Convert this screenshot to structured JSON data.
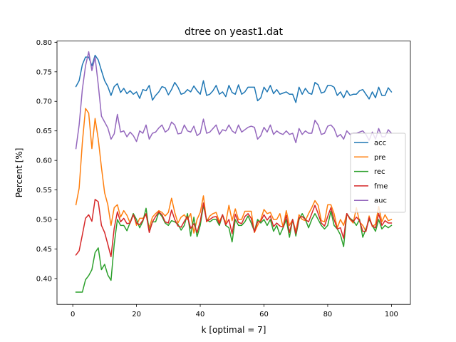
{
  "chart_data": {
    "type": "line",
    "title": "dtree on yeast1.dat",
    "xlabel": "k [optimal = 7]",
    "ylabel": "Percent [%]",
    "xlim": [
      -4.95,
      105.95
    ],
    "ylim": [
      0.3563,
      0.8021
    ],
    "xticks": [
      0,
      20,
      40,
      60,
      80,
      100
    ],
    "xtick_labels": [
      "0",
      "20",
      "40",
      "60",
      "80",
      "100"
    ],
    "yticks": [
      0.4,
      0.45,
      0.5,
      0.55,
      0.6,
      0.65,
      0.7,
      0.75,
      0.8
    ],
    "ytick_labels": [
      "0.40",
      "0.45",
      "0.50",
      "0.55",
      "0.60",
      "0.65",
      "0.70",
      "0.75",
      "0.80"
    ],
    "grid": false,
    "legend_position": "center-right",
    "x": [
      1,
      2,
      3,
      4,
      5,
      6,
      7,
      8,
      9,
      10,
      11,
      12,
      13,
      14,
      15,
      16,
      17,
      18,
      19,
      20,
      21,
      22,
      23,
      24,
      25,
      26,
      27,
      28,
      29,
      30,
      31,
      32,
      33,
      34,
      35,
      36,
      37,
      38,
      39,
      40,
      41,
      42,
      43,
      44,
      45,
      46,
      47,
      48,
      49,
      50,
      51,
      52,
      53,
      54,
      55,
      56,
      57,
      58,
      59,
      60,
      61,
      62,
      63,
      64,
      65,
      66,
      67,
      68,
      69,
      70,
      71,
      72,
      73,
      74,
      75,
      76,
      77,
      78,
      79,
      80,
      81,
      82,
      83,
      84,
      85,
      86,
      87,
      88,
      89,
      90,
      91,
      92,
      93,
      94,
      95,
      96,
      97,
      98,
      99,
      100
    ],
    "series": [
      {
        "name": "acc",
        "color": "#1f77b4",
        "values": [
          0.725,
          0.735,
          0.762,
          0.775,
          0.775,
          0.76,
          0.778,
          0.77,
          0.752,
          0.735,
          0.725,
          0.71,
          0.725,
          0.73,
          0.715,
          0.722,
          0.713,
          0.718,
          0.712,
          0.716,
          0.705,
          0.72,
          0.718,
          0.727,
          0.702,
          0.71,
          0.716,
          0.725,
          0.723,
          0.711,
          0.72,
          0.732,
          0.724,
          0.712,
          0.714,
          0.72,
          0.716,
          0.726,
          0.718,
          0.712,
          0.735,
          0.71,
          0.712,
          0.718,
          0.727,
          0.712,
          0.716,
          0.708,
          0.727,
          0.715,
          0.712,
          0.728,
          0.712,
          0.716,
          0.724,
          0.724,
          0.724,
          0.701,
          0.706,
          0.724,
          0.716,
          0.727,
          0.713,
          0.72,
          0.712,
          0.714,
          0.716,
          0.712,
          0.712,
          0.698,
          0.724,
          0.712,
          0.722,
          0.714,
          0.712,
          0.732,
          0.728,
          0.714,
          0.716,
          0.727,
          0.727,
          0.724,
          0.71,
          0.716,
          0.706,
          0.718,
          0.71,
          0.712,
          0.712,
          0.718,
          0.72,
          0.712,
          0.704,
          0.716,
          0.706,
          0.724,
          0.71,
          0.71,
          0.723,
          0.716
        ]
      },
      {
        "name": "pre",
        "color": "#ff7f0e",
        "values": [
          0.525,
          0.553,
          0.63,
          0.688,
          0.68,
          0.62,
          0.671,
          0.636,
          0.588,
          0.545,
          0.525,
          0.49,
          0.52,
          0.525,
          0.504,
          0.515,
          0.507,
          0.494,
          0.51,
          0.49,
          0.502,
          0.502,
          0.508,
          0.486,
          0.504,
          0.51,
          0.515,
          0.512,
          0.506,
          0.512,
          0.536,
          0.512,
          0.494,
          0.504,
          0.508,
          0.5,
          0.51,
          0.477,
          0.5,
          0.512,
          0.54,
          0.496,
          0.506,
          0.51,
          0.512,
          0.496,
          0.508,
          0.494,
          0.524,
          0.498,
          0.518,
          0.5,
          0.5,
          0.514,
          0.514,
          0.514,
          0.478,
          0.49,
          0.5,
          0.517,
          0.51,
          0.512,
          0.5,
          0.5,
          0.51,
          0.487,
          0.515,
          0.49,
          0.5,
          0.48,
          0.508,
          0.5,
          0.498,
          0.51,
          0.52,
          0.532,
          0.524,
          0.498,
          0.496,
          0.525,
          0.525,
          0.51,
          0.486,
          0.5,
          0.49,
          0.51,
          0.5,
          0.494,
          0.52,
          0.496,
          0.49,
          0.48,
          0.506,
          0.488,
          0.492,
          0.522,
          0.496,
          0.508,
          0.498,
          0.5
        ]
      },
      {
        "name": "rec",
        "color": "#2ca02c",
        "values": [
          0.377,
          0.377,
          0.377,
          0.398,
          0.405,
          0.415,
          0.444,
          0.452,
          0.415,
          0.424,
          0.406,
          0.397,
          0.458,
          0.5,
          0.49,
          0.49,
          0.481,
          0.495,
          0.51,
          0.5,
          0.486,
          0.497,
          0.519,
          0.48,
          0.496,
          0.496,
          0.512,
          0.505,
          0.494,
          0.49,
          0.498,
          0.496,
          0.492,
          0.482,
          0.49,
          0.51,
          0.472,
          0.504,
          0.471,
          0.49,
          0.524,
          0.5,
          0.496,
          0.5,
          0.5,
          0.49,
          0.508,
          0.49,
          0.486,
          0.462,
          0.5,
          0.49,
          0.49,
          0.496,
          0.506,
          0.494,
          0.48,
          0.5,
          0.494,
          0.5,
          0.49,
          0.5,
          0.48,
          0.49,
          0.474,
          0.486,
          0.5,
          0.47,
          0.5,
          0.472,
          0.5,
          0.51,
          0.5,
          0.486,
          0.5,
          0.51,
          0.5,
          0.49,
          0.484,
          0.49,
          0.514,
          0.49,
          0.484,
          0.474,
          0.454,
          0.51,
          0.502,
          0.498,
          0.49,
          0.5,
          0.47,
          0.484,
          0.5,
          0.49,
          0.48,
          0.5,
          0.484,
          0.49,
          0.486,
          0.49
        ]
      },
      {
        "name": "fme",
        "color": "#d62728",
        "values": [
          0.44,
          0.447,
          0.474,
          0.502,
          0.508,
          0.497,
          0.534,
          0.53,
          0.49,
          0.478,
          0.458,
          0.437,
          0.485,
          0.513,
          0.496,
          0.502,
          0.493,
          0.494,
          0.508,
          0.494,
          0.491,
          0.499,
          0.51,
          0.478,
          0.496,
          0.505,
          0.513,
          0.508,
          0.496,
          0.494,
          0.516,
          0.5,
          0.489,
          0.487,
          0.497,
          0.505,
          0.485,
          0.493,
          0.478,
          0.497,
          0.528,
          0.497,
          0.5,
          0.504,
          0.505,
          0.493,
          0.508,
          0.491,
          0.5,
          0.476,
          0.509,
          0.495,
          0.493,
          0.505,
          0.51,
          0.502,
          0.479,
          0.496,
          0.497,
          0.508,
          0.499,
          0.506,
          0.488,
          0.494,
          0.489,
          0.487,
          0.507,
          0.478,
          0.5,
          0.476,
          0.503,
          0.505,
          0.5,
          0.496,
          0.51,
          0.524,
          0.51,
          0.494,
          0.489,
          0.505,
          0.52,
          0.5,
          0.484,
          0.486,
          0.468,
          0.51,
          0.501,
          0.496,
          0.504,
          0.498,
          0.48,
          0.48,
          0.503,
          0.489,
          0.486,
          0.51,
          0.49,
          0.498,
          0.494,
          0.494
        ]
      },
      {
        "name": "auc",
        "color": "#9467bd",
        "values": [
          0.62,
          0.66,
          0.72,
          0.76,
          0.784,
          0.752,
          0.775,
          0.728,
          0.675,
          0.665,
          0.655,
          0.636,
          0.645,
          0.678,
          0.648,
          0.65,
          0.64,
          0.648,
          0.642,
          0.632,
          0.65,
          0.646,
          0.66,
          0.636,
          0.646,
          0.648,
          0.655,
          0.66,
          0.648,
          0.652,
          0.665,
          0.66,
          0.645,
          0.646,
          0.66,
          0.65,
          0.648,
          0.658,
          0.642,
          0.646,
          0.67,
          0.646,
          0.648,
          0.654,
          0.66,
          0.644,
          0.652,
          0.65,
          0.66,
          0.65,
          0.646,
          0.66,
          0.648,
          0.652,
          0.656,
          0.658,
          0.656,
          0.636,
          0.642,
          0.656,
          0.648,
          0.66,
          0.644,
          0.65,
          0.646,
          0.644,
          0.65,
          0.644,
          0.646,
          0.63,
          0.654,
          0.644,
          0.65,
          0.646,
          0.646,
          0.668,
          0.66,
          0.644,
          0.646,
          0.658,
          0.66,
          0.654,
          0.64,
          0.644,
          0.636,
          0.65,
          0.644,
          0.646,
          0.646,
          0.648,
          0.65,
          0.644,
          0.634,
          0.648,
          0.636,
          0.654,
          0.64,
          0.64,
          0.652,
          0.646
        ]
      }
    ]
  }
}
